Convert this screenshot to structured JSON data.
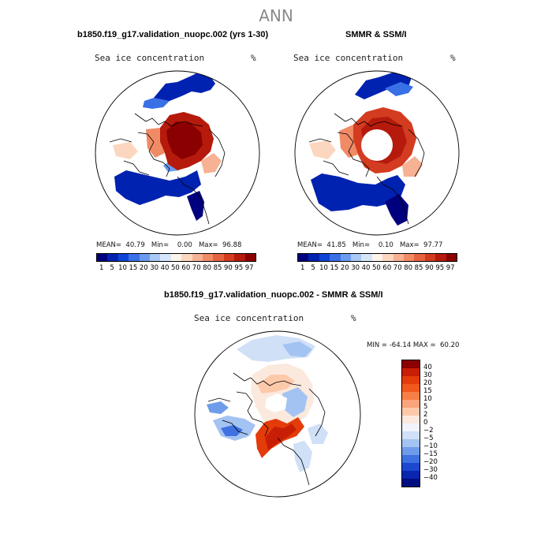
{
  "season": "ANN",
  "panels": {
    "model": {
      "title": "b1850.f19_g17.validation_nuopc.002 (yrs 1-30)",
      "variable": "Sea ice concentration",
      "units": "%",
      "mean_label": "MEAN=",
      "mean": "40.79",
      "min_label": "Min=",
      "min": "0.00",
      "max_label": "Max=",
      "max": "96.88"
    },
    "obs": {
      "title": "SMMR & SSM/I",
      "variable": "Sea ice concentration",
      "units": "%",
      "mean_label": "MEAN=",
      "mean": "41.85",
      "min_label": "Min=",
      "min": "0.10",
      "max_label": "Max=",
      "max": "97.77"
    },
    "diff": {
      "title": "b1850.f19_g17.validation_nuopc.002 - SMMR & SSM/I",
      "variable": "Sea ice concentration",
      "units": "%",
      "min_label": "MIN =",
      "min": "-64.14",
      "max_label": "MAX =",
      "max": "60.20"
    }
  },
  "chart_data": [
    {
      "type": "heatmap",
      "title": "b1850.f19_g17.validation_nuopc.002 (yrs 1-30)",
      "subtitle": "Sea ice concentration",
      "units": "%",
      "projection": "north-polar-stereographic",
      "levels": [
        "1",
        "5",
        "10",
        "15",
        "20",
        "30",
        "40",
        "50",
        "60",
        "70",
        "80",
        "85",
        "90",
        "95",
        "97"
      ],
      "colors": [
        "#00007f",
        "#0022b0",
        "#0f45d6",
        "#3a70e6",
        "#6b9bf0",
        "#a8c8f5",
        "#d6e6fa",
        "#fdf4ec",
        "#fcd7c0",
        "#f7b293",
        "#f18b66",
        "#e6633f",
        "#d33c20",
        "#b51a0c",
        "#8b0000"
      ],
      "stats": {
        "mean": 40.79,
        "min": 0.0,
        "max": 96.88
      }
    },
    {
      "type": "heatmap",
      "title": "SMMR & SSM/I",
      "subtitle": "Sea ice concentration",
      "units": "%",
      "projection": "north-polar-stereographic",
      "levels": [
        "1",
        "5",
        "10",
        "15",
        "20",
        "30",
        "40",
        "50",
        "60",
        "70",
        "80",
        "85",
        "90",
        "95",
        "97"
      ],
      "colors": [
        "#00007f",
        "#0022b0",
        "#0f45d6",
        "#3a70e6",
        "#6b9bf0",
        "#a8c8f5",
        "#d6e6fa",
        "#fdf4ec",
        "#fcd7c0",
        "#f7b293",
        "#f18b66",
        "#e6633f",
        "#d33c20",
        "#b51a0c",
        "#8b0000"
      ],
      "stats": {
        "mean": 41.85,
        "min": 0.1,
        "max": 97.77
      }
    },
    {
      "type": "heatmap",
      "title": "b1850.f19_g17.validation_nuopc.002 - SMMR & SSM/I",
      "subtitle": "Sea ice concentration",
      "units": "%",
      "projection": "north-polar-stereographic",
      "levels": [
        "40",
        "30",
        "20",
        "15",
        "10",
        "5",
        "2",
        "0",
        "-2",
        "-5",
        "-10",
        "-15",
        "-20",
        "-30",
        "-40"
      ],
      "colors": [
        "#8b0000",
        "#c81e05",
        "#e43b0a",
        "#f2581c",
        "#f77f45",
        "#fba37a",
        "#fdc9ab",
        "#fbe9dd",
        "#f1f4fa",
        "#cfe0f7",
        "#a3c3f2",
        "#6f9cea",
        "#3f72e0",
        "#1c47cf",
        "#0a25b0",
        "#000d80"
      ],
      "stats": {
        "min": -64.14,
        "max": 60.2
      }
    }
  ]
}
